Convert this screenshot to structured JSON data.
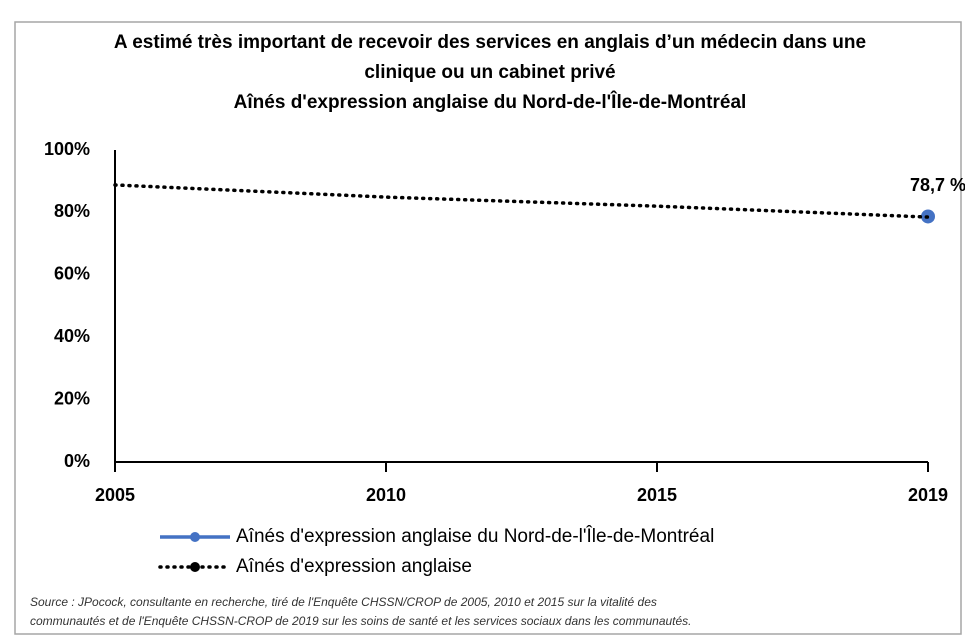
{
  "chart_data": {
    "type": "line",
    "title": [
      "A estimé très important de recevoir des services en anglais d’un médecin dans une",
      "clinique ou un cabinet privé"
    ],
    "subtitle": "Aînés d'expression anglaise du Nord-de-l'Île-de-Montréal",
    "categories": [
      "2005",
      "2010",
      "2015",
      "2019"
    ],
    "series": [
      {
        "name": "Aînés d'expression anglaise du Nord-de-l'Île-de-Montréal",
        "color": "#4472c4",
        "style": "solid",
        "values": [
          null,
          null,
          null,
          78.7
        ],
        "value_labels": [
          null,
          null,
          null,
          "78,7 %"
        ]
      },
      {
        "name": "Aînés d'expression anglaise",
        "color": "#000000",
        "style": "dotted",
        "values": [
          88.8,
          84.9,
          82.0,
          78.5
        ]
      }
    ],
    "ylim": [
      0,
      100
    ],
    "yticks": [
      {
        "value": 0,
        "label": "0%"
      },
      {
        "value": 20,
        "label": "20%"
      },
      {
        "value": 40,
        "label": "40%"
      },
      {
        "value": 60,
        "label": "60%"
      },
      {
        "value": 80,
        "label": "80%"
      },
      {
        "value": 100,
        "label": "100%"
      }
    ],
    "grid": false,
    "source": [
      "Source : JPocock, consultante en recherche, tiré de l'Enquête CHSSN/CROP de 2005, 2010 et 2015 sur la vitalité des",
      "communautés et de l'Enquête CHSSN-CROP de 2019 sur les soins de santé et les services sociaux dans les communautés."
    ]
  }
}
